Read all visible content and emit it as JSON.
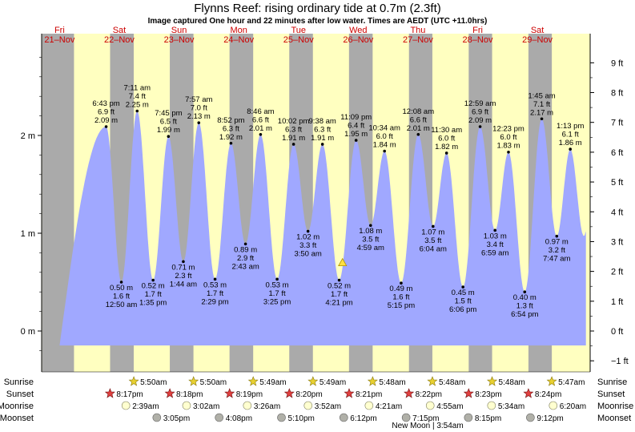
{
  "chart_data": {
    "type": "area",
    "title": "Flynns Reef: rising  ordinary tide at 0.7m (2.3ft)",
    "subtitle": "Image captured One hour and 22 minutes after low water. Times are AEDT (UTC +11.0hrs)",
    "y_left_unit": "m",
    "y_right_unit": "ft",
    "ylim_m": [
      -0.3,
      2.85
    ],
    "y_left_ticks": [
      "0 m",
      "1 m",
      "2 m"
    ],
    "y_left_tick_values": [
      0,
      1,
      2
    ],
    "y_right_ticks": [
      "−1 ft",
      "0 ft",
      "1 ft",
      "2 ft",
      "3 ft",
      "4 ft",
      "5 ft",
      "6 ft",
      "7 ft",
      "8 ft",
      "9 ft"
    ],
    "y_right_tick_values": [
      -1,
      0,
      1,
      2,
      3,
      4,
      5,
      6,
      7,
      8,
      9
    ],
    "x_range_hours": [
      0,
      216
    ],
    "days": [
      {
        "day": "Fri",
        "date": "21–Nov"
      },
      {
        "day": "Sat",
        "date": "22–Nov"
      },
      {
        "day": "Sun",
        "date": "23–Nov"
      },
      {
        "day": "Mon",
        "date": "24–Nov"
      },
      {
        "day": "Tue",
        "date": "25–Nov"
      },
      {
        "day": "Wed",
        "date": "26–Nov"
      },
      {
        "day": "Thu",
        "date": "27–Nov"
      },
      {
        "day": "Fri",
        "date": "28–Nov"
      },
      {
        "day": "Sat",
        "date": "29–Nov"
      }
    ],
    "night_bands": [
      [
        -7,
        5.8
      ],
      [
        20.3,
        29.8
      ],
      [
        44.3,
        53.8
      ],
      [
        68.3,
        77.8
      ],
      [
        92.3,
        101.8
      ],
      [
        116.3,
        125.8
      ],
      [
        140.4,
        149.8
      ],
      [
        164.4,
        173.8
      ],
      [
        188.4,
        197.8
      ]
    ],
    "tides": [
      {
        "type": "high",
        "hour": 18.72,
        "m": 2.09,
        "time": "6:43 pm",
        "ft": "6.9 ft",
        "height": "2.09 m"
      },
      {
        "type": "low",
        "hour": 24.83,
        "m": 0.5,
        "time": "12:50 am",
        "ft": "1.6 ft",
        "height": "0.50 m"
      },
      {
        "type": "high",
        "hour": 31.18,
        "m": 2.25,
        "time": "7:11 am",
        "ft": "7.4 ft",
        "height": "2.25 m"
      },
      {
        "type": "low",
        "hour": 37.58,
        "m": 0.52,
        "time": "1:35 pm",
        "ft": "1.7 ft",
        "height": "0.52 m"
      },
      {
        "type": "high",
        "hour": 43.75,
        "m": 1.99,
        "time": "7:45 pm",
        "ft": "6.5 ft",
        "height": "1.99 m"
      },
      {
        "type": "low",
        "hour": 49.73,
        "m": 0.71,
        "time": "1:44 am",
        "ft": "2.3 ft",
        "height": "0.71 m"
      },
      {
        "type": "high",
        "hour": 55.95,
        "m": 2.13,
        "time": "7:57 am",
        "ft": "7.0 ft",
        "height": "2.13 m"
      },
      {
        "type": "low",
        "hour": 62.48,
        "m": 0.53,
        "time": "2:29 pm",
        "ft": "1.7 ft",
        "height": "0.53 m"
      },
      {
        "type": "high",
        "hour": 68.87,
        "m": 1.92,
        "time": "8:52 pm",
        "ft": "6.3 ft",
        "height": "1.92 m"
      },
      {
        "type": "low",
        "hour": 74.72,
        "m": 0.89,
        "time": "2:43 am",
        "ft": "2.9 ft",
        "height": "0.89 m"
      },
      {
        "type": "high",
        "hour": 80.77,
        "m": 2.01,
        "time": "8:46 am",
        "ft": "6.6 ft",
        "height": "2.01 m"
      },
      {
        "type": "low",
        "hour": 87.42,
        "m": 0.53,
        "time": "3:25 pm",
        "ft": "1.7 ft",
        "height": "0.53 m"
      },
      {
        "type": "high",
        "hour": 94.03,
        "m": 1.91,
        "time": "10:02 pm",
        "ft": "6.3 ft",
        "height": "1.91 m"
      },
      {
        "type": "low",
        "hour": 99.83,
        "m": 1.02,
        "time": "3:50 am",
        "ft": "3.3 ft",
        "height": "1.02 m"
      },
      {
        "type": "high",
        "hour": 105.63,
        "m": 1.91,
        "time": "9:38 am",
        "ft": "6.3 ft",
        "height": "1.91 m"
      },
      {
        "type": "low",
        "hour": 112.35,
        "m": 0.52,
        "time": "4:21 pm",
        "ft": "1.7 ft",
        "height": "0.52 m"
      },
      {
        "type": "high",
        "hour": 119.15,
        "m": 1.95,
        "time": "11:09 pm",
        "ft": "6.4 ft",
        "height": "1.95 m"
      },
      {
        "type": "low",
        "hour": 124.98,
        "m": 1.08,
        "time": "4:59 am",
        "ft": "3.5 ft",
        "height": "1.08 m"
      },
      {
        "type": "high",
        "hour": 130.57,
        "m": 1.84,
        "time": "10:34 am",
        "ft": "6.0 ft",
        "height": "1.84 m"
      },
      {
        "type": "low",
        "hour": 137.25,
        "m": 0.49,
        "time": "5:15 pm",
        "ft": "1.6 ft",
        "height": "0.49 m"
      },
      {
        "type": "high",
        "hour": 144.13,
        "m": 2.01,
        "time": "12:08 am",
        "ft": "6.6 ft",
        "height": "2.01 m"
      },
      {
        "type": "low",
        "hour": 150.07,
        "m": 1.07,
        "time": "6:04 am",
        "ft": "3.5 ft",
        "height": "1.07 m"
      },
      {
        "type": "high",
        "hour": 155.5,
        "m": 1.82,
        "time": "11:30 am",
        "ft": "6.0 ft",
        "height": "1.82 m"
      },
      {
        "type": "low",
        "hour": 162.1,
        "m": 0.45,
        "time": "6:06 pm",
        "ft": "1.5 ft",
        "height": "0.45 m"
      },
      {
        "type": "high",
        "hour": 168.98,
        "m": 2.09,
        "time": "12:59 am",
        "ft": "6.9 ft",
        "height": "2.09 m"
      },
      {
        "type": "low",
        "hour": 174.98,
        "m": 1.03,
        "time": "6:59 am",
        "ft": "3.4 ft",
        "height": "1.03 m"
      },
      {
        "type": "high",
        "hour": 180.38,
        "m": 1.83,
        "time": "12:23 pm",
        "ft": "6.0 ft",
        "height": "1.83 m"
      },
      {
        "type": "low",
        "hour": 186.9,
        "m": 0.4,
        "time": "6:54 pm",
        "ft": "1.3 ft",
        "height": "0.40 m"
      },
      {
        "type": "high",
        "hour": 193.75,
        "m": 2.17,
        "time": "1:45 am",
        "ft": "7.1 ft",
        "height": "2.17 m"
      },
      {
        "type": "low",
        "hour": 199.78,
        "m": 0.97,
        "time": "7:47 am",
        "ft": "3.2 ft",
        "height": "0.97 m"
      },
      {
        "type": "high",
        "hour": 205.22,
        "m": 1.86,
        "time": "1:13 pm",
        "ft": "6.1 ft",
        "height": "1.86 m"
      }
    ],
    "curve_start": {
      "hour": 0,
      "m": -0.15
    },
    "curve_end_hour": 211.5,
    "current": {
      "hour": 113.7,
      "m": 0.7,
      "color": "#ffe040"
    },
    "colors": {
      "day": "#ffffc0",
      "night": "#aaaaaa",
      "water": "#a0a8ff",
      "day_label": "#cc0000",
      "sun_icon": "#e8d030",
      "sunset_icon": "#e04040",
      "moonrise_icon": "#ffffd0",
      "moonset_icon": "#b0b0a8"
    },
    "rows": {
      "sunrise": {
        "label": "Sunrise",
        "events": [
          {
            "hour": 29.83,
            "time": "5:50am"
          },
          {
            "hour": 53.83,
            "time": "5:50am"
          },
          {
            "hour": 77.82,
            "time": "5:49am"
          },
          {
            "hour": 101.82,
            "time": "5:49am"
          },
          {
            "hour": 125.8,
            "time": "5:48am"
          },
          {
            "hour": 149.8,
            "time": "5:48am"
          },
          {
            "hour": 173.8,
            "time": "5:48am"
          },
          {
            "hour": 197.78,
            "time": "5:47am"
          }
        ]
      },
      "sunset": {
        "label": "Sunset",
        "events": [
          {
            "hour": 20.28,
            "time": "8:17pm"
          },
          {
            "hour": 44.3,
            "time": "8:18pm"
          },
          {
            "hour": 68.32,
            "time": "8:19pm"
          },
          {
            "hour": 92.33,
            "time": "8:20pm"
          },
          {
            "hour": 116.35,
            "time": "8:21pm"
          },
          {
            "hour": 140.37,
            "time": "8:22pm"
          },
          {
            "hour": 164.38,
            "time": "8:23pm"
          },
          {
            "hour": 188.4,
            "time": "8:24pm"
          }
        ]
      },
      "moonrise": {
        "label": "Moonrise",
        "events": [
          {
            "hour": 26.65,
            "time": "2:39am"
          },
          {
            "hour": 51.03,
            "time": "3:02am"
          },
          {
            "hour": 75.43,
            "time": "3:26am"
          },
          {
            "hour": 99.87,
            "time": "3:52am"
          },
          {
            "hour": 124.35,
            "time": "4:21am"
          },
          {
            "hour": 148.92,
            "time": "4:55am"
          },
          {
            "hour": 173.57,
            "time": "5:34am"
          },
          {
            "hour": 198.33,
            "time": "6:20am"
          }
        ]
      },
      "moonset": {
        "label": "Moonset",
        "events": [
          {
            "hour": 39.08,
            "time": "3:05pm"
          },
          {
            "hour": 64.13,
            "time": "4:08pm"
          },
          {
            "hour": 89.17,
            "time": "5:10pm"
          },
          {
            "hour": 114.2,
            "time": "6:12pm"
          },
          {
            "hour": 139.25,
            "time": "7:15pm"
          },
          {
            "hour": 164.25,
            "time": "8:15pm"
          },
          {
            "hour": 189.2,
            "time": "9:12pm"
          }
        ]
      }
    },
    "new_moon": {
      "hour": 147.9,
      "text": "New Moon | 3:54am"
    }
  }
}
